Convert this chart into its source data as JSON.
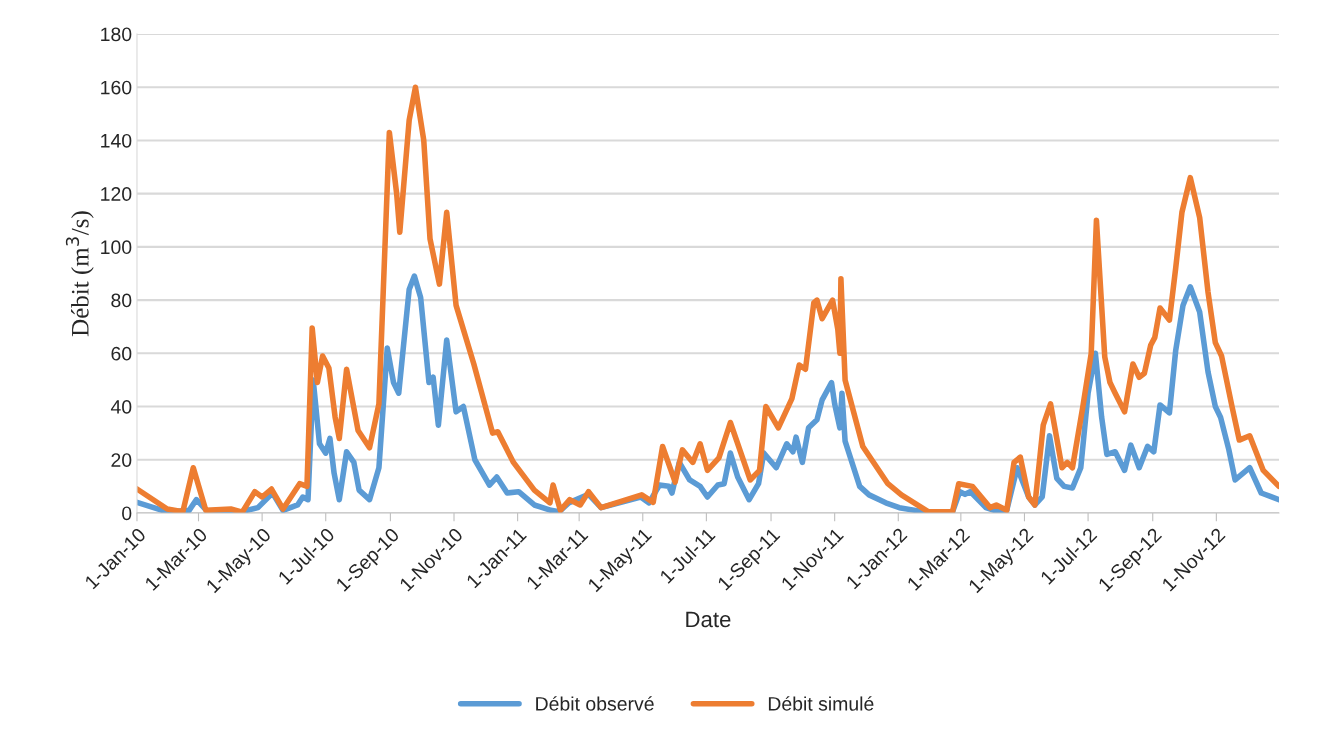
{
  "chart_data": {
    "type": "line",
    "xlabel": "Date",
    "ylabel": "Débit (m$^{3}$/s)",
    "ylim": [
      0,
      180
    ],
    "yticks": [
      0,
      20,
      40,
      60,
      80,
      100,
      120,
      140,
      160,
      180
    ],
    "xlim": [
      "2010-01-01",
      "2012-12-31"
    ],
    "xticks": [
      {
        "value": "2010-01-01",
        "label": "1-Jan-10"
      },
      {
        "value": "2010-03-01",
        "label": "1-Mar-10"
      },
      {
        "value": "2010-05-01",
        "label": "1-May-10"
      },
      {
        "value": "2010-07-01",
        "label": "1-Jul-10"
      },
      {
        "value": "2010-09-01",
        "label": "1-Sep-10"
      },
      {
        "value": "2010-11-01",
        "label": "1-Nov-10"
      },
      {
        "value": "2011-01-01",
        "label": "1-Jan-11"
      },
      {
        "value": "2011-03-01",
        "label": "1-Mar-11"
      },
      {
        "value": "2011-05-01",
        "label": "1-May-11"
      },
      {
        "value": "2011-07-01",
        "label": "1-Jul-11"
      },
      {
        "value": "2011-09-01",
        "label": "1-Sep-11"
      },
      {
        "value": "2011-11-01",
        "label": "1-Nov-11"
      },
      {
        "value": "2012-01-01",
        "label": "1-Jan-12"
      },
      {
        "value": "2012-03-01",
        "label": "1-Mar-12"
      },
      {
        "value": "2012-05-01",
        "label": "1-May-12"
      },
      {
        "value": "2012-07-01",
        "label": "1-Jul-12"
      },
      {
        "value": "2012-09-01",
        "label": "1-Sep-12"
      },
      {
        "value": "2012-11-01",
        "label": "1-Nov-12"
      }
    ],
    "grid": "y",
    "legend": "bottom",
    "marker": "none",
    "line_style": "solid",
    "series": [
      {
        "name": "Débit observé",
        "color": "#5b9bd5",
        "x": [
          "2010-01-01",
          "2010-01-30",
          "2010-02-20",
          "2010-02-27",
          "2010-03-10",
          "2010-04-10",
          "2010-04-27",
          "2010-05-11",
          "2010-05-21",
          "2010-06-04",
          "2010-06-09",
          "2010-06-14",
          "2010-06-19",
          "2010-06-25",
          "2010-07-01",
          "2010-07-05",
          "2010-07-09",
          "2010-07-14",
          "2010-07-21",
          "2010-07-28",
          "2010-08-02",
          "2010-08-12",
          "2010-08-21",
          "2010-08-29",
          "2010-09-04",
          "2010-09-09",
          "2010-09-19",
          "2010-09-24",
          "2010-09-30",
          "2010-10-08",
          "2010-10-12",
          "2010-10-17",
          "2010-10-25",
          "2010-11-03",
          "2010-11-10",
          "2010-11-21",
          "2010-12-05",
          "2010-12-12",
          "2010-12-22",
          "2011-01-02",
          "2011-01-17",
          "2011-02-02",
          "2011-02-10",
          "2011-02-19",
          "2011-03-10",
          "2011-03-22",
          "2011-04-29",
          "2011-05-07",
          "2011-05-17",
          "2011-05-26",
          "2011-05-29",
          "2011-06-05",
          "2011-06-15",
          "2011-06-25",
          "2011-07-02",
          "2011-07-12",
          "2011-07-18",
          "2011-07-24",
          "2011-07-31",
          "2011-08-11",
          "2011-08-20",
          "2011-08-25",
          "2011-09-06",
          "2011-09-16",
          "2011-09-22",
          "2011-09-25",
          "2011-10-01",
          "2011-10-07",
          "2011-10-15",
          "2011-10-20",
          "2011-10-29",
          "2011-11-01",
          "2011-11-06",
          "2011-11-08",
          "2011-11-11",
          "2011-11-25",
          "2011-12-04",
          "2011-12-20",
          "2012-01-02",
          "2012-01-26",
          "2012-02-22",
          "2012-02-29",
          "2012-03-05",
          "2012-03-10",
          "2012-03-25",
          "2012-04-02",
          "2012-04-14",
          "2012-04-24",
          "2012-05-05",
          "2012-05-11",
          "2012-05-18",
          "2012-05-25",
          "2012-06-01",
          "2012-06-08",
          "2012-06-16",
          "2012-06-24",
          "2012-07-01",
          "2012-07-08",
          "2012-07-14",
          "2012-07-19",
          "2012-07-27",
          "2012-08-05",
          "2012-08-11",
          "2012-08-19",
          "2012-08-27",
          "2012-09-02",
          "2012-09-08",
          "2012-09-17",
          "2012-09-23",
          "2012-09-30",
          "2012-10-07",
          "2012-10-16",
          "2012-10-24",
          "2012-10-31",
          "2012-11-05",
          "2012-11-13",
          "2012-11-19",
          "2012-12-03",
          "2012-12-14",
          "2012-12-31"
        ],
        "values": [
          4,
          0.4,
          1,
          5,
          0.4,
          0.4,
          2,
          7.5,
          1,
          3,
          6,
          5,
          50,
          26,
          22.5,
          28,
          15,
          5,
          23,
          19,
          8.6,
          5,
          17,
          62,
          49,
          45,
          84,
          89,
          81,
          49,
          51,
          33,
          65,
          38,
          40,
          20,
          10.5,
          13.5,
          7.5,
          8,
          3,
          1,
          0.5,
          3.8,
          7,
          2,
          6,
          3.8,
          10.5,
          10,
          7.5,
          19,
          12.4,
          10,
          6,
          10.5,
          11,
          22.5,
          13.5,
          5,
          11,
          22.5,
          17,
          26,
          23,
          28.5,
          19,
          32,
          35,
          42.5,
          49,
          41,
          32,
          45,
          27,
          10,
          6.8,
          3.8,
          2,
          0.4,
          0.4,
          8,
          7,
          8,
          2,
          1,
          1,
          17,
          6,
          3,
          6,
          29,
          13,
          10,
          9.4,
          17,
          45,
          60,
          36,
          22,
          23,
          16,
          25.5,
          17,
          25,
          23,
          40.6,
          37.6,
          61,
          78,
          85,
          75.5,
          53,
          40,
          36,
          23.7,
          12.4,
          17,
          7.5,
          5
        ]
      },
      {
        "name": "Débit simulé",
        "color": "#ed7d31",
        "x": [
          "2010-01-01",
          "2010-01-30",
          "2010-02-14",
          "2010-02-24",
          "2010-03-08",
          "2010-04-01",
          "2010-04-12",
          "2010-04-24",
          "2010-05-01",
          "2010-05-10",
          "2010-05-21",
          "2010-06-06",
          "2010-06-13",
          "2010-06-18",
          "2010-06-23",
          "2010-06-28",
          "2010-07-04",
          "2010-07-10",
          "2010-07-14",
          "2010-07-21",
          "2010-08-01",
          "2010-08-12",
          "2010-08-21",
          "2010-08-31",
          "2010-09-07",
          "2010-09-10",
          "2010-09-19",
          "2010-09-25",
          "2010-10-03",
          "2010-10-09",
          "2010-10-18",
          "2010-10-25",
          "2010-11-03",
          "2010-11-20",
          "2010-12-08",
          "2010-12-13",
          "2010-12-28",
          "2011-01-17",
          "2011-02-01",
          "2011-02-04",
          "2011-02-11",
          "2011-02-20",
          "2011-03-02",
          "2011-03-10",
          "2011-03-22",
          "2011-04-30",
          "2011-05-11",
          "2011-05-20",
          "2011-06-01",
          "2011-06-08",
          "2011-06-18",
          "2011-06-25",
          "2011-07-02",
          "2011-07-13",
          "2011-07-24",
          "2011-08-12",
          "2011-08-21",
          "2011-08-27",
          "2011-09-08",
          "2011-09-21",
          "2011-09-28",
          "2011-10-04",
          "2011-10-12",
          "2011-10-15",
          "2011-10-20",
          "2011-10-30",
          "2011-11-04",
          "2011-11-06",
          "2011-11-07",
          "2011-11-11",
          "2011-11-28",
          "2011-12-22",
          "2012-01-04",
          "2012-01-30",
          "2012-02-22",
          "2012-02-28",
          "2012-03-12",
          "2012-03-29",
          "2012-04-04",
          "2012-04-14",
          "2012-04-21",
          "2012-04-27",
          "2012-05-05",
          "2012-05-11",
          "2012-05-19",
          "2012-05-26",
          "2012-06-06",
          "2012-06-11",
          "2012-06-16",
          "2012-06-26",
          "2012-07-04",
          "2012-07-09",
          "2012-07-17",
          "2012-07-22",
          "2012-07-27",
          "2012-08-05",
          "2012-08-13",
          "2012-08-19",
          "2012-08-24",
          "2012-08-30",
          "2012-09-03",
          "2012-09-08",
          "2012-09-17",
          "2012-09-23",
          "2012-09-29",
          "2012-10-07",
          "2012-10-16",
          "2012-10-24",
          "2012-10-31",
          "2012-11-06",
          "2012-11-16",
          "2012-11-23",
          "2012-12-03",
          "2012-12-16",
          "2012-12-31"
        ],
        "values": [
          9,
          1.5,
          0.5,
          17,
          1,
          1.5,
          0.3,
          8,
          6,
          9,
          1.5,
          11,
          10,
          69.5,
          49,
          59,
          54.5,
          36,
          28,
          54,
          31,
          24.5,
          41,
          143,
          120,
          105.5,
          147.6,
          160,
          140,
          103,
          86,
          113,
          78,
          56,
          30,
          30.5,
          19,
          8.6,
          3.8,
          10.5,
          1,
          5,
          3,
          8,
          2,
          6.8,
          4,
          25,
          11.6,
          23.7,
          19,
          26,
          16,
          20.7,
          34,
          12.4,
          16,
          40,
          32,
          43,
          55.6,
          54,
          79,
          80,
          73,
          80,
          69,
          60,
          88,
          50,
          25,
          11,
          6.8,
          0.4,
          0.4,
          11,
          10,
          2,
          3,
          1,
          19,
          21,
          6,
          3,
          33,
          41,
          17,
          19,
          17,
          40,
          60,
          110,
          58.6,
          49,
          45,
          38,
          56,
          51,
          52.5,
          63,
          66,
          77,
          72.5,
          92,
          113,
          126,
          111,
          83,
          64,
          59,
          40,
          27.4,
          29,
          16,
          10
        ]
      }
    ]
  }
}
